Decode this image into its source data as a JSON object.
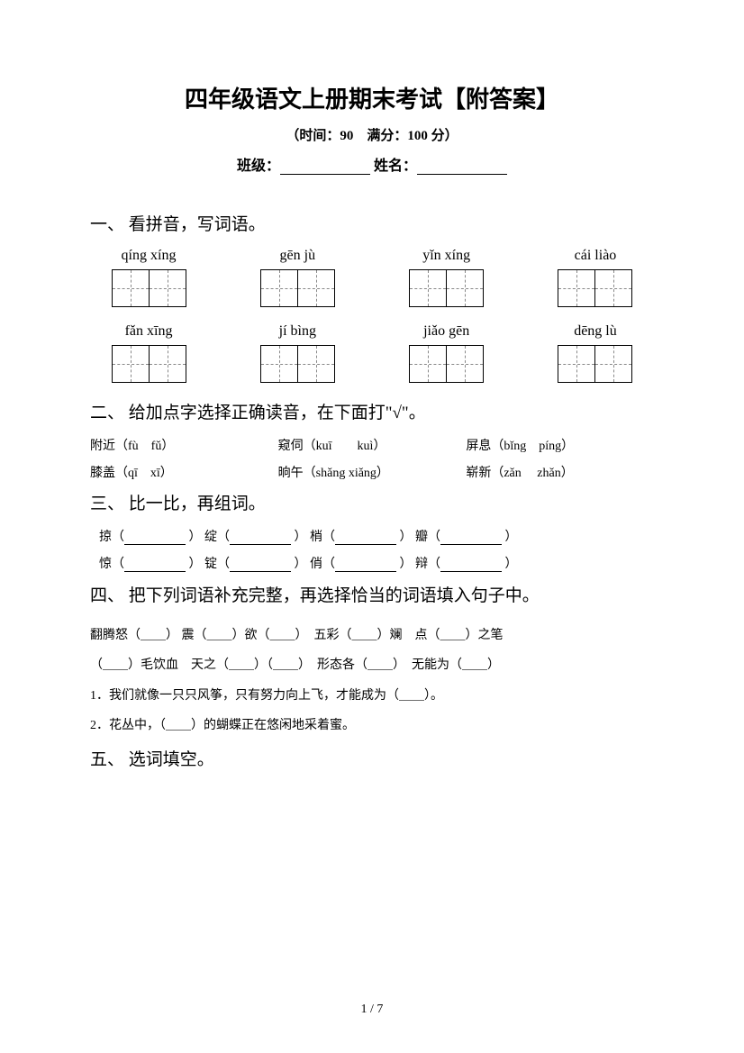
{
  "title": "四年级语文上册期末考试【附答案】",
  "subtitle": "（时间：90　满分：100 分）",
  "classLabel": "班级：",
  "nameLabel": "姓名：",
  "sections": {
    "s1": {
      "title": "一、 看拼音，写词语。",
      "row1": [
        "qíng xíng",
        "gēn jù",
        "yǐn xíng",
        "cái liào"
      ],
      "row2": [
        "fǎn xīng",
        "jí bìng",
        "jiǎo gēn",
        "dēng lù"
      ]
    },
    "s2": {
      "title": "二、 给加点字选择正确读音，在下面打\"√\"。",
      "items": [
        [
          "附近（fù　fǔ）",
          "窥伺（kuī　　kuì）",
          "屏息（bǐng　píng）"
        ],
        [
          "膝盖（qī　xī）",
          "晌午（shǎng xiǎng）",
          "崭新（zǎn　 zhǎn）"
        ]
      ]
    },
    "s3": {
      "title": "三、 比一比，再组词。",
      "rows": [
        [
          "掠（",
          "） 绽（",
          "） 梢（",
          "） 瓣（",
          "）"
        ],
        [
          "惊（",
          "） 锭（",
          "） 俏（",
          "） 辩（",
          "）"
        ]
      ]
    },
    "s4": {
      "title": "四、 把下列词语补充完整，再选择恰当的词语填入句子中。",
      "lines": [
        "翻腾怒（＿＿） 震（＿＿）欲（＿＿）　五彩（＿＿）斓　点（＿＿）之笔",
        "（＿＿）毛饮血　天之（＿＿）（＿＿）　形态各（＿＿）　无能为（＿＿）",
        "1．我们就像一只只风筝，只有努力向上飞，才能成为（＿＿）。",
        "2．花丛中，（＿＿）的蝴蝶正在悠闲地采着蜜。"
      ]
    },
    "s5": {
      "title": "五、 选词填空。"
    }
  },
  "pageNumber": "1 / 7"
}
